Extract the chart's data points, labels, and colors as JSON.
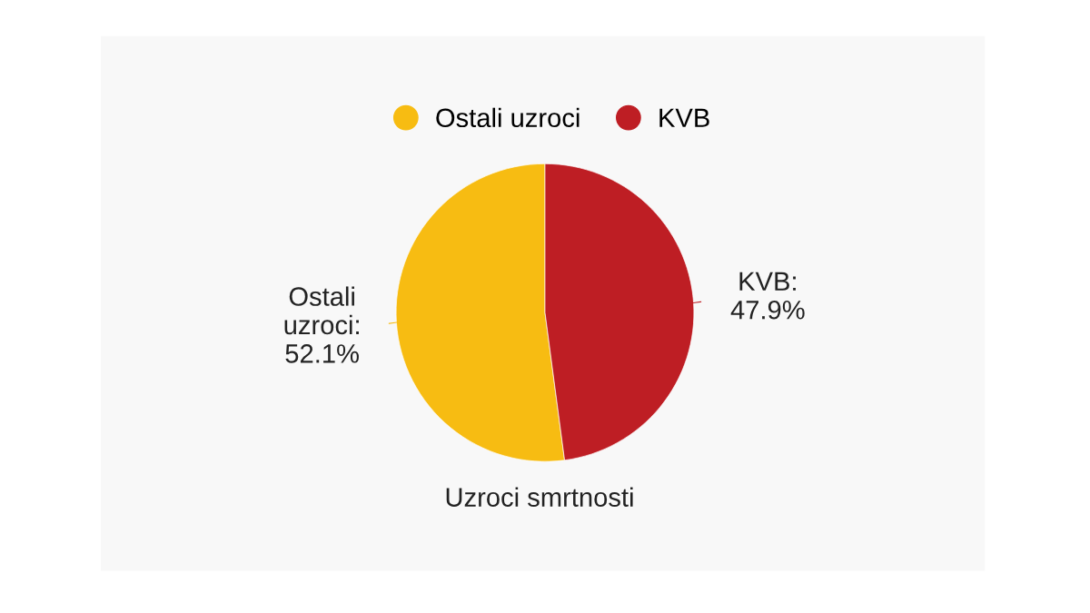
{
  "chart_data": {
    "type": "pie",
    "title": "Uzroci smrtnosti",
    "categories": [
      "Ostali uzroci",
      "KVB"
    ],
    "values": [
      52.1,
      47.9
    ],
    "colors": [
      "#f7bc12",
      "#be1e24"
    ],
    "value_labels": [
      "Ostali\nuzroci:\n52.1%",
      "KVB:\n47.9%"
    ],
    "legend": "top"
  }
}
